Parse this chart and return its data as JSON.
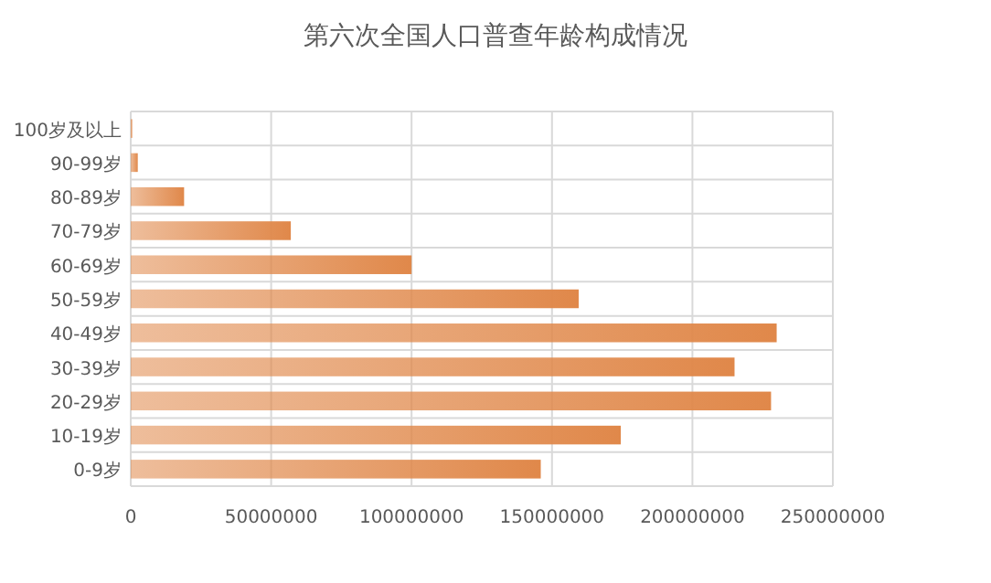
{
  "chart_data": {
    "type": "bar",
    "orientation": "horizontal",
    "title": "第六次全国人口普查年龄构成情况",
    "categories": [
      "100岁及以上",
      "90-99岁",
      "80-89岁",
      "70-79岁",
      "60-69岁",
      "50-59岁",
      "40-49岁",
      "30-39岁",
      "20-29岁",
      "10-19岁",
      "0-9岁"
    ],
    "values": [
      500000,
      2500000,
      19000000,
      57000000,
      100000000,
      159500000,
      230000000,
      215000000,
      228000000,
      174500000,
      146000000
    ],
    "color": "#e0884a",
    "xlim": [
      0,
      250000000
    ],
    "xticks": [
      0,
      50000000,
      100000000,
      150000000,
      200000000,
      250000000
    ],
    "grid": true
  }
}
